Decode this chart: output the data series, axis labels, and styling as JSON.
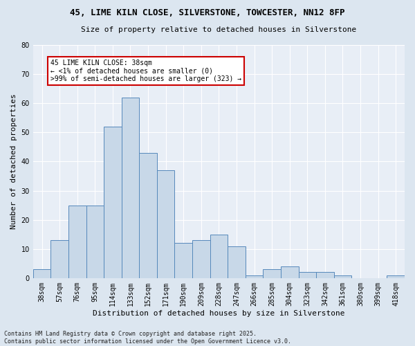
{
  "title1": "45, LIME KILN CLOSE, SILVERSTONE, TOWCESTER, NN12 8FP",
  "title2": "Size of property relative to detached houses in Silverstone",
  "xlabel": "Distribution of detached houses by size in Silverstone",
  "ylabel": "Number of detached properties",
  "footnote": "Contains HM Land Registry data © Crown copyright and database right 2025.\nContains public sector information licensed under the Open Government Licence v3.0.",
  "bar_labels": [
    "38sqm",
    "57sqm",
    "76sqm",
    "95sqm",
    "114sqm",
    "133sqm",
    "152sqm",
    "171sqm",
    "190sqm",
    "209sqm",
    "228sqm",
    "247sqm",
    "266sqm",
    "285sqm",
    "304sqm",
    "323sqm",
    "342sqm",
    "361sqm",
    "380sqm",
    "399sqm",
    "418sqm"
  ],
  "bar_heights": [
    3,
    13,
    25,
    25,
    52,
    62,
    43,
    37,
    12,
    13,
    15,
    11,
    1,
    3,
    4,
    2,
    2,
    1,
    0,
    0,
    1
  ],
  "bar_color": "#c8d8e8",
  "bar_edge_color": "#5588bb",
  "annotation_text": "45 LIME KILN CLOSE: 38sqm\n← <1% of detached houses are smaller (0)\n>99% of semi-detached houses are larger (323) →",
  "annotation_box_color": "#ffffff",
  "annotation_box_edge": "#cc0000",
  "ylim": [
    0,
    80
  ],
  "yticks": [
    0,
    10,
    20,
    30,
    40,
    50,
    60,
    70,
    80
  ],
  "bg_color": "#dce6f0",
  "plot_bg_color": "#e8eef6",
  "grid_color": "#ffffff",
  "highlight_bar_index": 0,
  "title1_fontsize": 9,
  "title2_fontsize": 8,
  "ylabel_fontsize": 8,
  "xlabel_fontsize": 8,
  "tick_fontsize": 7,
  "annot_fontsize": 7,
  "footnote_fontsize": 6
}
